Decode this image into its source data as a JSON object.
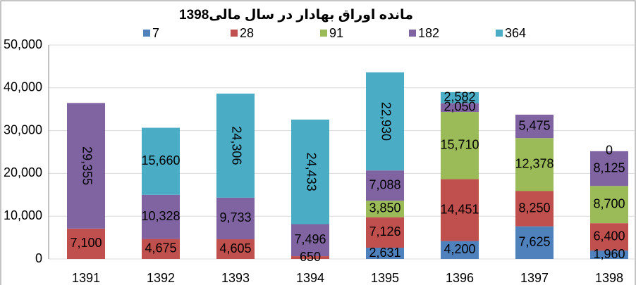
{
  "chart_data": {
    "type": "bar",
    "stacked": true,
    "title": "مانده اوراق بهادار در سال مالی1398",
    "categories": [
      "1391",
      "1392",
      "1393",
      "1394",
      "1395",
      "1396",
      "1397",
      "1398"
    ],
    "series": [
      {
        "name": "7",
        "color": "#4f81bd",
        "values": [
          null,
          null,
          null,
          null,
          2631,
          4200,
          7625,
          1960
        ],
        "value_labels": [
          null,
          null,
          null,
          null,
          "2,631",
          "4,200",
          "7,625",
          "1,960"
        ]
      },
      {
        "name": "28",
        "color": "#c0504d",
        "values": [
          7100,
          4675,
          4605,
          650,
          7126,
          14451,
          8250,
          6400
        ],
        "value_labels": [
          "7,100",
          "4,675",
          "4,605",
          "650",
          "7,126",
          "14,451",
          "8,250",
          "6,400"
        ]
      },
      {
        "name": "91",
        "color": "#9bbb59",
        "values": [
          null,
          null,
          null,
          null,
          3850,
          15710,
          12378,
          8700
        ],
        "value_labels": [
          null,
          null,
          null,
          null,
          "3,850",
          "15,710",
          "12,378",
          "8,700"
        ]
      },
      {
        "name": "182",
        "color": "#8064a2",
        "values": [
          29355,
          10328,
          9733,
          7496,
          7088,
          2050,
          5475,
          8125
        ],
        "value_labels": [
          "29,355",
          "10,328",
          "9,733",
          "7,496",
          "7,088",
          "2,050",
          "5,475",
          "8,125"
        ]
      },
      {
        "name": "364",
        "color": "#4bacc6",
        "values": [
          null,
          15660,
          24306,
          24433,
          22930,
          2582,
          null,
          0
        ],
        "value_labels": [
          null,
          "15,660",
          "24,306",
          "24,433",
          "22,930",
          "2,582",
          null,
          "0"
        ]
      }
    ],
    "ylim": [
      0,
      50000
    ],
    "yticks": [
      0,
      {
        "value": 10000,
        "label": "10,000"
      },
      {
        "value": 20000,
        "label": "20,000"
      },
      {
        "value": 30000,
        "label": "30,000"
      },
      {
        "value": 40000,
        "label": "40,000"
      },
      {
        "value": 50000,
        "label": "50,000"
      }
    ],
    "grid": true,
    "legend": "top"
  }
}
